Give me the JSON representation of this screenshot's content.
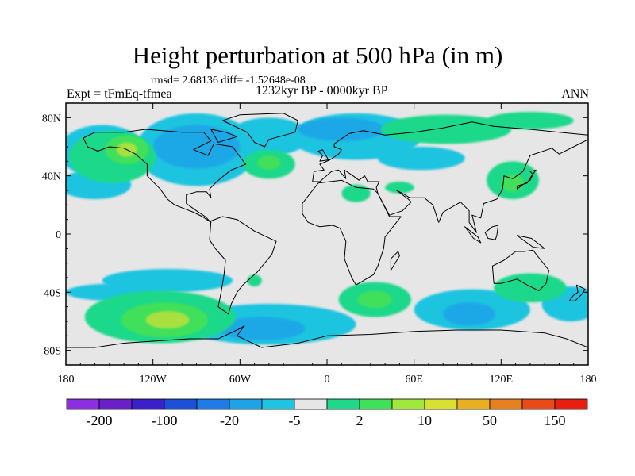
{
  "title": "Height perturbation at 500 hPa (in m)",
  "stats": "rmsd= 2.68136 diff= -1.52648e-08",
  "left_label": "Expt = tFmEq-tfmea",
  "center_label": "1232kyr BP - 0000kyr BP",
  "right_label": "ANN",
  "map": {
    "projection": "cylindrical-equidistant",
    "lon_range": [
      -180,
      180
    ],
    "lat_range": [
      -90,
      90
    ],
    "background_color": "#e6e6e6",
    "coastline_color": "#000000"
  },
  "axes": {
    "x_ticks": [
      {
        "value": -180,
        "label": "180"
      },
      {
        "value": -120,
        "label": "120W"
      },
      {
        "value": -60,
        "label": "60W"
      },
      {
        "value": 0,
        "label": "0"
      },
      {
        "value": 60,
        "label": "60E"
      },
      {
        "value": 120,
        "label": "120E"
      },
      {
        "value": 180,
        "label": "180"
      }
    ],
    "y_ticks": [
      {
        "value": 80,
        "label": "80N"
      },
      {
        "value": 40,
        "label": "40N"
      },
      {
        "value": 0,
        "label": "0"
      },
      {
        "value": -40,
        "label": "40S"
      },
      {
        "value": -80,
        "label": "80S"
      }
    ]
  },
  "colorbar": {
    "colors": [
      "#8b2fe0",
      "#6a1fc9",
      "#3b1fc8",
      "#1d4fd8",
      "#1e7be8",
      "#1fa3e8",
      "#1fc4e0",
      "#e6e6e6",
      "#1fd88a",
      "#3fe05a",
      "#a0e83c",
      "#d8e030",
      "#e8b020",
      "#e88020",
      "#e84a18",
      "#e81e10"
    ],
    "labels": [
      {
        "boundary": 1,
        "text": "-200"
      },
      {
        "boundary": 3,
        "text": "-100"
      },
      {
        "boundary": 5,
        "text": "-20"
      },
      {
        "boundary": 7,
        "text": "-5"
      },
      {
        "boundary": 9,
        "text": "2"
      },
      {
        "boundary": 11,
        "text": "10"
      },
      {
        "boundary": 13,
        "text": "50"
      },
      {
        "boundary": 15,
        "text": "150"
      }
    ]
  },
  "fields": [
    {
      "level": "-5",
      "color": "#1fc4e0",
      "blobs": [
        {
          "lon": -155,
          "lat": 57,
          "rlon": 30,
          "rlat": 18
        },
        {
          "lon": -90,
          "lat": 58,
          "rlon": 42,
          "rlat": 25
        },
        {
          "lon": -40,
          "lat": 67,
          "rlon": 28,
          "rlat": 13
        },
        {
          "lon": 20,
          "lat": 67,
          "rlon": 45,
          "rlat": 16
        },
        {
          "lon": 65,
          "lat": 52,
          "rlon": 30,
          "rlat": 8
        },
        {
          "lon": -160,
          "lat": 34,
          "rlon": 25,
          "rlat": 10
        },
        {
          "lon": -110,
          "lat": -32,
          "rlon": 45,
          "rlat": 8
        },
        {
          "lon": -145,
          "lat": -40,
          "rlon": 35,
          "rlat": 6
        },
        {
          "lon": -40,
          "lat": -62,
          "rlon": 60,
          "rlat": 14
        },
        {
          "lon": 100,
          "lat": -52,
          "rlon": 40,
          "rlat": 14
        },
        {
          "lon": 168,
          "lat": -48,
          "rlon": 20,
          "rlat": 12
        }
      ]
    },
    {
      "level": "-20",
      "color": "#1ea8e6",
      "blobs": [
        {
          "lon": -90,
          "lat": 60,
          "rlon": 30,
          "rlat": 15
        },
        {
          "lon": 10,
          "lat": 72,
          "rlon": 30,
          "rlat": 8
        },
        {
          "lon": -45,
          "lat": -65,
          "rlon": 30,
          "rlat": 8
        },
        {
          "lon": 98,
          "lat": -55,
          "rlon": 18,
          "rlat": 8
        }
      ]
    },
    {
      "level": "2",
      "color": "#1fd88a",
      "blobs": [
        {
          "lon": -148,
          "lat": 53,
          "rlon": 30,
          "rlat": 18
        },
        {
          "lon": -40,
          "lat": 48,
          "rlon": 18,
          "rlat": 10
        },
        {
          "lon": 82,
          "lat": 72,
          "rlon": 45,
          "rlat": 10
        },
        {
          "lon": 140,
          "lat": 78,
          "rlon": 30,
          "rlat": 6
        },
        {
          "lon": 128,
          "lat": 37,
          "rlon": 18,
          "rlat": 13
        },
        {
          "lon": 20,
          "lat": 28,
          "rlon": 10,
          "rlat": 6
        },
        {
          "lon": 50,
          "lat": 32,
          "rlon": 10,
          "rlat": 4
        },
        {
          "lon": -115,
          "lat": -57,
          "rlon": 52,
          "rlat": 18
        },
        {
          "lon": 33,
          "lat": -45,
          "rlon": 25,
          "rlat": 12
        },
        {
          "lon": 140,
          "lat": -37,
          "rlon": 25,
          "rlat": 10
        },
        {
          "lon": -50,
          "lat": -32,
          "rlon": 5,
          "rlat": 4
        }
      ]
    },
    {
      "level": "10",
      "color": "#3fe05a",
      "blobs": [
        {
          "lon": -138,
          "lat": 58,
          "rlon": 15,
          "rlat": 10
        },
        {
          "lon": -40,
          "lat": 49,
          "rlon": 8,
          "rlat": 5
        },
        {
          "lon": -112,
          "lat": -59,
          "rlon": 30,
          "rlat": 12
        },
        {
          "lon": 33,
          "lat": -45,
          "rlon": 12,
          "rlat": 6
        },
        {
          "lon": 128,
          "lat": 35,
          "rlon": 8,
          "rlat": 6
        }
      ]
    },
    {
      "level": "50",
      "color": "#a8e040",
      "blobs": [
        {
          "lon": -138,
          "lat": 58,
          "rlon": 7,
          "rlat": 5
        },
        {
          "lon": -110,
          "lat": -59,
          "rlon": 15,
          "rlat": 6
        }
      ]
    }
  ]
}
